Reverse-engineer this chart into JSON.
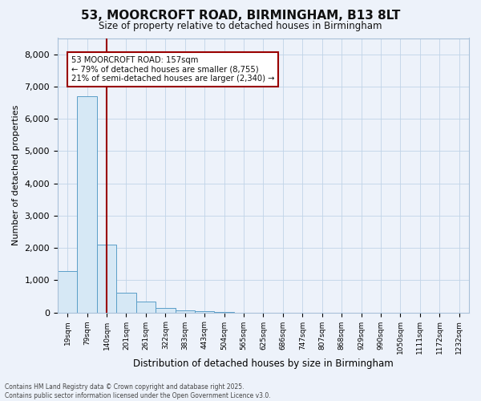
{
  "title_line1": "53, MOORCROFT ROAD, BIRMINGHAM, B13 8LT",
  "title_line2": "Size of property relative to detached houses in Birmingham",
  "xlabel": "Distribution of detached houses by size in Birmingham",
  "ylabel": "Number of detached properties",
  "categories": [
    "19sqm",
    "79sqm",
    "140sqm",
    "201sqm",
    "261sqm",
    "322sqm",
    "383sqm",
    "443sqm",
    "504sqm",
    "565sqm",
    "625sqm",
    "686sqm",
    "747sqm",
    "807sqm",
    "868sqm",
    "929sqm",
    "990sqm",
    "1050sqm",
    "1111sqm",
    "1172sqm",
    "1232sqm"
  ],
  "values": [
    1270,
    6700,
    2100,
    600,
    350,
    150,
    70,
    30,
    20,
    0,
    0,
    0,
    0,
    0,
    0,
    0,
    0,
    0,
    0,
    0,
    0
  ],
  "bar_color": "#d6e8f5",
  "bar_edge_color": "#5a9ec8",
  "grid_color": "#c0d4e8",
  "vline_x": 2.0,
  "vline_color": "#990000",
  "annotation_text": "53 MOORCROFT ROAD: 157sqm\n← 79% of detached houses are smaller (8,755)\n21% of semi-detached houses are larger (2,340) →",
  "annotation_box_color": "#990000",
  "annotation_bg": "#ffffff",
  "ylim": [
    0,
    8500
  ],
  "yticks": [
    0,
    1000,
    2000,
    3000,
    4000,
    5000,
    6000,
    7000,
    8000
  ],
  "footer_line1": "Contains HM Land Registry data © Crown copyright and database right 2025.",
  "footer_line2": "Contains public sector information licensed under the Open Government Licence v3.0.",
  "bg_color": "#edf2fa",
  "fig_width": 6.0,
  "fig_height": 5.0,
  "dpi": 100
}
